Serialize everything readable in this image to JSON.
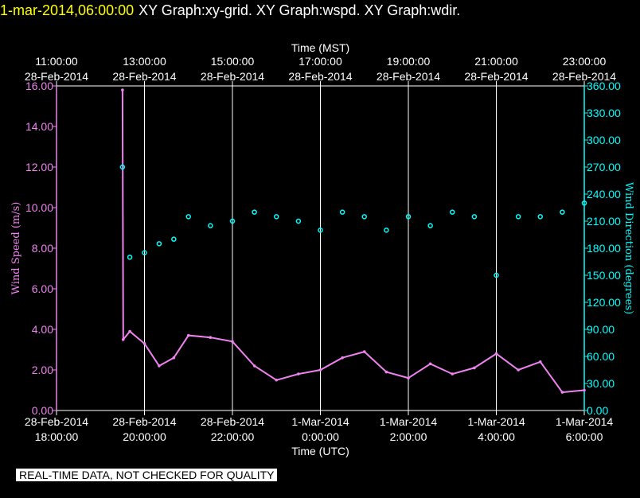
{
  "title": {
    "datetime": "1-mar-2014,06:00:00",
    "graphs": "XY Graph:xy-grid.  XY Graph:wspd.  XY Graph:wdir."
  },
  "notice": "REAL-TIME DATA, NOT CHECKED FOR QUALITY",
  "colors": {
    "wind_speed": "#ee82ee",
    "wind_direction": "#00ffff",
    "grid": "#ffffff",
    "background": "#000000"
  },
  "chart_data": {
    "type": "scatter",
    "x_top_label": "Time (MST)",
    "x_bottom_label": "Time (UTC)",
    "xlim": [
      "2014-02-28T18:00:00Z",
      "2014-03-01T06:00:00Z"
    ],
    "top_ticks": [
      {
        "time": "2014-02-28T18:00:00Z",
        "line1": "11:00:00",
        "line2": "28-Feb-2014"
      },
      {
        "time": "2014-02-28T20:00:00Z",
        "line1": "13:00:00",
        "line2": "28-Feb-2014"
      },
      {
        "time": "2014-02-28T22:00:00Z",
        "line1": "15:00:00",
        "line2": "28-Feb-2014"
      },
      {
        "time": "2014-03-01T00:00:00Z",
        "line1": "17:00:00",
        "line2": "28-Feb-2014"
      },
      {
        "time": "2014-03-01T02:00:00Z",
        "line1": "19:00:00",
        "line2": "28-Feb-2014"
      },
      {
        "time": "2014-03-01T04:00:00Z",
        "line1": "21:00:00",
        "line2": "28-Feb-2014"
      },
      {
        "time": "2014-03-01T06:00:00Z",
        "line1": "23:00:00",
        "line2": "28-Feb-2014"
      }
    ],
    "bottom_ticks": [
      {
        "time": "2014-02-28T18:00:00Z",
        "line1": "28-Feb-2014",
        "line2": "18:00:00"
      },
      {
        "time": "2014-02-28T20:00:00Z",
        "line1": "28-Feb-2014",
        "line2": "20:00:00"
      },
      {
        "time": "2014-02-28T22:00:00Z",
        "line1": "28-Feb-2014",
        "line2": "22:00:00"
      },
      {
        "time": "2014-03-01T00:00:00Z",
        "line1": "1-Mar-2014",
        "line2": "0:00:00"
      },
      {
        "time": "2014-03-01T02:00:00Z",
        "line1": "1-Mar-2014",
        "line2": "2:00:00"
      },
      {
        "time": "2014-03-01T04:00:00Z",
        "line1": "1-Mar-2014",
        "line2": "4:00:00"
      },
      {
        "time": "2014-03-01T06:00:00Z",
        "line1": "1-Mar-2014",
        "line2": "6:00:00"
      }
    ],
    "y_left": {
      "label": "Wind Speed (m/s)",
      "ylim": [
        0,
        16
      ],
      "ticks": [
        "0.00",
        "2.00",
        "4.00",
        "6.00",
        "8.00",
        "10.00",
        "12.00",
        "14.00",
        "16.00"
      ]
    },
    "y_right": {
      "label": "Wind Direction (degrees)",
      "ylim": [
        0,
        360
      ],
      "ticks": [
        "0.00",
        "30.00",
        "60.00",
        "90.00",
        "120.00",
        "150.00",
        "180.00",
        "210.00",
        "240.00",
        "270.00",
        "300.00",
        "330.00",
        "360.00"
      ]
    },
    "grid": true,
    "series": [
      {
        "name": "Wind Speed (m/s)",
        "axis": "left",
        "style": "line",
        "points": [
          [
            "2014-02-28T19:30:00Z",
            15.8
          ],
          [
            "2014-02-28T19:31:00Z",
            3.5
          ],
          [
            "2014-02-28T19:40:00Z",
            3.9
          ],
          [
            "2014-02-28T20:00:00Z",
            3.3
          ],
          [
            "2014-02-28T20:20:00Z",
            2.2
          ],
          [
            "2014-02-28T20:40:00Z",
            2.6
          ],
          [
            "2014-02-28T21:00:00Z",
            3.7
          ],
          [
            "2014-02-28T21:30:00Z",
            3.6
          ],
          [
            "2014-02-28T22:00:00Z",
            3.4
          ],
          [
            "2014-02-28T22:30:00Z",
            2.2
          ],
          [
            "2014-02-28T23:00:00Z",
            1.5
          ],
          [
            "2014-02-28T23:30:00Z",
            1.8
          ],
          [
            "2014-03-01T00:00:00Z",
            2.0
          ],
          [
            "2014-03-01T00:30:00Z",
            2.6
          ],
          [
            "2014-03-01T01:00:00Z",
            2.9
          ],
          [
            "2014-03-01T01:30:00Z",
            1.9
          ],
          [
            "2014-03-01T02:00:00Z",
            1.6
          ],
          [
            "2014-03-01T02:30:00Z",
            2.3
          ],
          [
            "2014-03-01T03:00:00Z",
            1.8
          ],
          [
            "2014-03-01T03:30:00Z",
            2.1
          ],
          [
            "2014-03-01T04:00:00Z",
            2.8
          ],
          [
            "2014-03-01T04:30:00Z",
            2.0
          ],
          [
            "2014-03-01T05:00:00Z",
            2.4
          ],
          [
            "2014-03-01T05:30:00Z",
            0.9
          ],
          [
            "2014-03-01T06:00:00Z",
            1.0
          ]
        ]
      },
      {
        "name": "Wind Direction (degrees)",
        "axis": "right",
        "style": "points",
        "points": [
          [
            "2014-02-28T19:30:00Z",
            270
          ],
          [
            "2014-02-28T19:40:00Z",
            170
          ],
          [
            "2014-02-28T20:00:00Z",
            175
          ],
          [
            "2014-02-28T20:20:00Z",
            185
          ],
          [
            "2014-02-28T20:40:00Z",
            190
          ],
          [
            "2014-02-28T21:00:00Z",
            215
          ],
          [
            "2014-02-28T21:30:00Z",
            205
          ],
          [
            "2014-02-28T22:00:00Z",
            210
          ],
          [
            "2014-02-28T22:30:00Z",
            220
          ],
          [
            "2014-02-28T23:00:00Z",
            215
          ],
          [
            "2014-02-28T23:30:00Z",
            210
          ],
          [
            "2014-03-01T00:00:00Z",
            200
          ],
          [
            "2014-03-01T00:30:00Z",
            220
          ],
          [
            "2014-03-01T01:00:00Z",
            215
          ],
          [
            "2014-03-01T01:30:00Z",
            200
          ],
          [
            "2014-03-01T02:00:00Z",
            215
          ],
          [
            "2014-03-01T02:30:00Z",
            205
          ],
          [
            "2014-03-01T03:00:00Z",
            220
          ],
          [
            "2014-03-01T03:30:00Z",
            215
          ],
          [
            "2014-03-01T04:00:00Z",
            150
          ],
          [
            "2014-03-01T04:30:00Z",
            215
          ],
          [
            "2014-03-01T05:00:00Z",
            215
          ],
          [
            "2014-03-01T05:30:00Z",
            220
          ],
          [
            "2014-03-01T06:00:00Z",
            230
          ]
        ]
      }
    ]
  }
}
